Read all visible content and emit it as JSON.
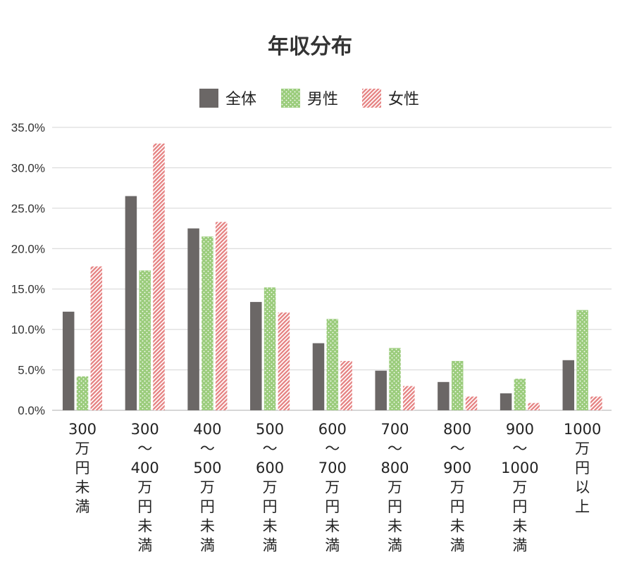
{
  "chart_data": {
    "type": "bar",
    "title": "年収分布",
    "xlabel": "",
    "ylabel": "",
    "ylim": [
      0,
      35
    ],
    "yticks": [
      "0.0%",
      "5.0%",
      "10.0%",
      "15.0%",
      "20.0%",
      "25.0%",
      "30.0%",
      "35.0%"
    ],
    "categories": [
      [
        "300",
        "万",
        "円",
        "未",
        "満"
      ],
      [
        "300",
        "～",
        "400",
        "万",
        "円",
        "未",
        "満"
      ],
      [
        "400",
        "～",
        "500",
        "万",
        "円",
        "未",
        "満"
      ],
      [
        "500",
        "～",
        "600",
        "万",
        "円",
        "未",
        "満"
      ],
      [
        "600",
        "～",
        "700",
        "万",
        "円",
        "未",
        "満"
      ],
      [
        "700",
        "～",
        "800",
        "万",
        "円",
        "未",
        "満"
      ],
      [
        "800",
        "～",
        "900",
        "万",
        "円",
        "未",
        "満"
      ],
      [
        "900",
        "～",
        "1000",
        "万",
        "円",
        "未",
        "満"
      ],
      [
        "1000",
        "万",
        "円",
        "以",
        "上"
      ]
    ],
    "series": [
      {
        "name": "全体",
        "color": "#6b6766",
        "pattern": "solid",
        "values": [
          12.2,
          26.5,
          22.5,
          13.4,
          8.3,
          4.9,
          3.5,
          2.1,
          6.2
        ]
      },
      {
        "name": "男性",
        "color": "#9bcc7c",
        "pattern": "dots",
        "values": [
          4.2,
          17.3,
          21.5,
          15.2,
          11.3,
          7.7,
          6.1,
          3.9,
          12.4
        ]
      },
      {
        "name": "女性",
        "color": "#e58181",
        "pattern": "stripes",
        "values": [
          17.8,
          33.0,
          23.3,
          12.1,
          6.1,
          3.0,
          1.7,
          0.9,
          1.7
        ]
      }
    ],
    "legend_position": "top-center",
    "grid": true
  }
}
